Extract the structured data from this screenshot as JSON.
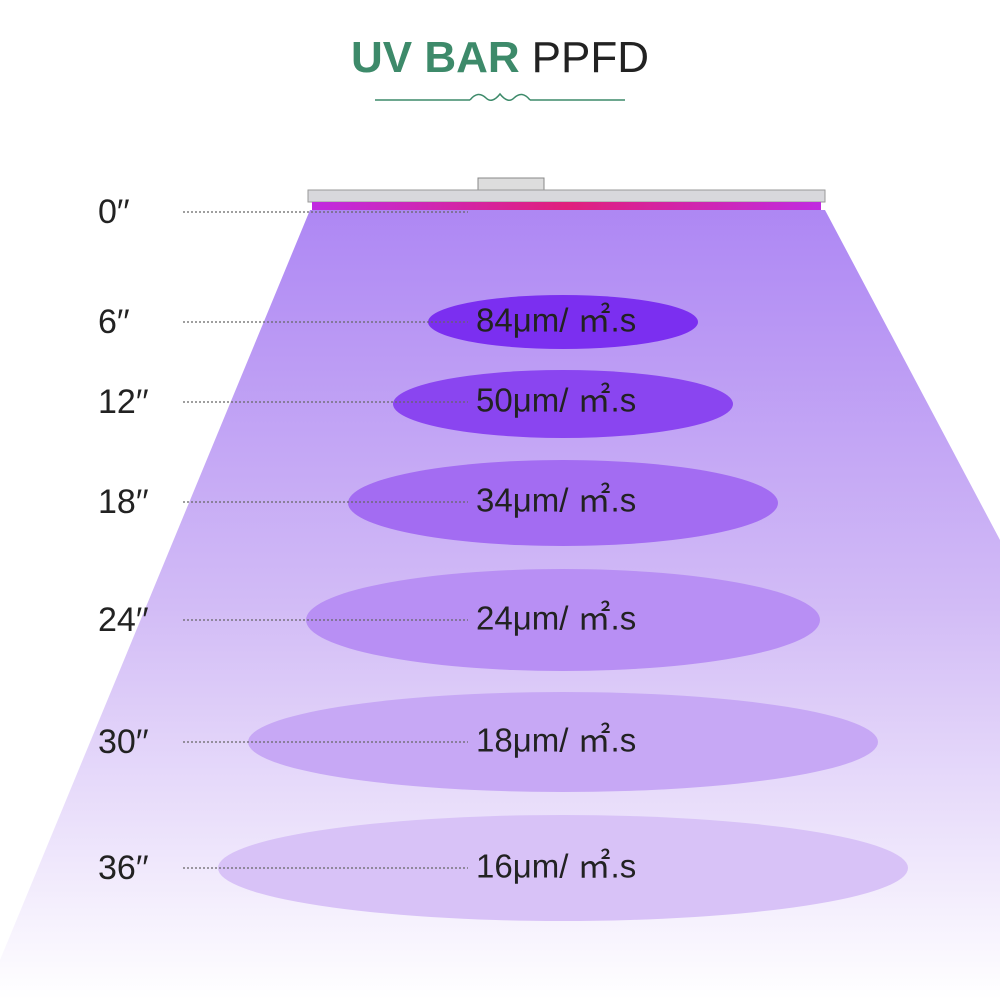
{
  "title": {
    "highlight": "UV BAR",
    "rest": "PPFD"
  },
  "rows": [
    {
      "distance": "0′′"
    },
    {
      "distance": "6′′",
      "ppfd": "84μm/ ㎡.s"
    },
    {
      "distance": "12′′",
      "ppfd": "50μm/ ㎡.s"
    },
    {
      "distance": "18′′",
      "ppfd": "34μm/ ㎡.s"
    },
    {
      "distance": "24′′",
      "ppfd": "24μm/ ㎡.s"
    },
    {
      "distance": "30′′",
      "ppfd": "18μm/ ㎡.s"
    },
    {
      "distance": "36′′",
      "ppfd": "16μm/ ㎡.s"
    }
  ]
}
